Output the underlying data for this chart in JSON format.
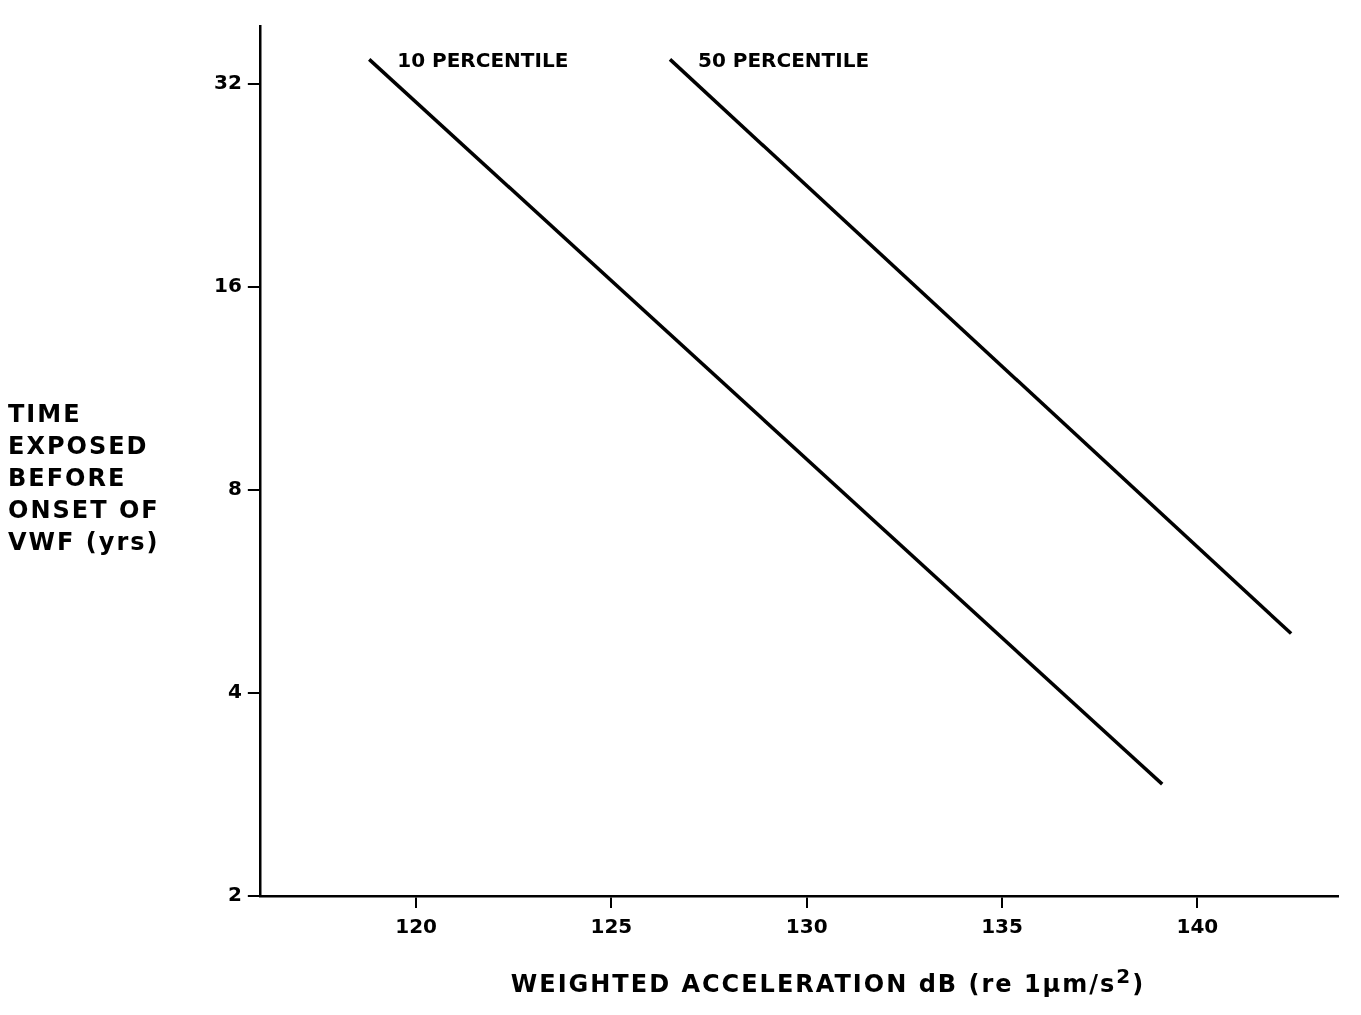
{
  "chart_data": {
    "type": "line",
    "xlabel": "WEIGHTED ACCELERATION dB (re 1μm/s$^{2}$)",
    "ylabel": "TIME EXPOSED BEFORE ONSET OF VWF (yrs)",
    "log": "y",
    "xlim": [
      116,
      143.6
    ],
    "ylim": [
      2,
      39
    ],
    "xticks": [
      120,
      125,
      130,
      135,
      140
    ],
    "yticks": [
      2,
      4,
      8,
      16,
      32
    ],
    "grid": false,
    "legend": false,
    "marker": "none",
    "line_style": "solid",
    "series": [
      {
        "name": "10 PERCENTILE",
        "color": "#000000",
        "x": [
          118.8,
          139.1
        ],
        "values": [
          34.8,
          2.93
        ]
      },
      {
        "name": "50 PERCENTILE",
        "color": "#000000",
        "x": [
          126.5,
          142.4
        ],
        "values": [
          34.8,
          4.9
        ]
      }
    ]
  }
}
